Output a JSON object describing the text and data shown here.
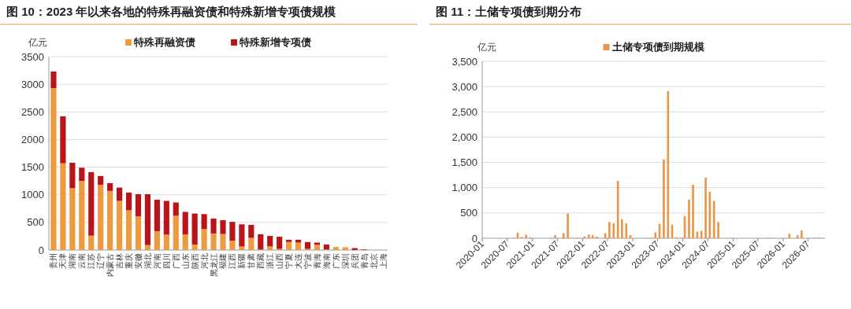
{
  "chart_data": [
    {
      "type": "bar",
      "title": "图 10：2023 年以来各地的特殊再融资债和特殊新增专项债规模",
      "ylabel": "亿元",
      "stacked": true,
      "grid": "y",
      "legend": "top",
      "categories": [
        "贵州",
        "天津",
        "湖南",
        "云南",
        "江苏",
        "辽宁",
        "内蒙古",
        "吉林",
        "重庆",
        "安徽",
        "湖北",
        "河南",
        "四川",
        "广西",
        "山东",
        "陕西",
        "河北",
        "黑龙江",
        "福建",
        "江西",
        "新疆",
        "甘肃",
        "西藏",
        "浙江",
        "山西",
        "宁夏",
        "大连",
        "宁波",
        "青海",
        "海南",
        "广东",
        "深圳",
        "兵团",
        "青岛",
        "北京",
        "上海"
      ],
      "series": [
        {
          "name": "特殊再融资债",
          "color": "#ee9a3e",
          "values": [
            2930,
            1570,
            1120,
            1250,
            260,
            1180,
            1070,
            890,
            720,
            610,
            90,
            340,
            280,
            620,
            280,
            100,
            380,
            300,
            290,
            170,
            65,
            220,
            10,
            65,
            20,
            145,
            135,
            20,
            95,
            10,
            55,
            50,
            0,
            0,
            0,
            0
          ]
        },
        {
          "name": "特殊新增专项债",
          "color": "#b8141a",
          "values": [
            300,
            850,
            460,
            240,
            1150,
            160,
            140,
            240,
            320,
            400,
            920,
            570,
            610,
            240,
            410,
            560,
            270,
            270,
            250,
            340,
            400,
            235,
            275,
            190,
            220,
            40,
            50,
            125,
            40,
            90,
            0,
            0,
            35,
            10,
            0,
            0
          ]
        }
      ],
      "ylim": [
        0,
        3500
      ],
      "yticks": [
        0,
        500,
        1000,
        1500,
        2000,
        2500,
        3000,
        3500
      ]
    },
    {
      "type": "bar",
      "title": "图 11：土储专项债到期分布",
      "ylabel": "亿元",
      "grid": "y",
      "legend": "top",
      "x": [
        "2020-08-15",
        "2020-09-15",
        "2020-10-15",
        "2020-11-15",
        "2020-12-15",
        "2021-05-15",
        "2021-06-15",
        "2021-08-15",
        "2021-09-15",
        "2021-10-15",
        "2021-11-15",
        "2022-01-15",
        "2022-02-15",
        "2022-03-15",
        "2022-04-15",
        "2022-06-15",
        "2022-07-15",
        "2022-08-15",
        "2022-09-15",
        "2022-10-15",
        "2022-11-15",
        "2022-12-15",
        "2023-04-15",
        "2023-05-15",
        "2023-06-15",
        "2023-07-15",
        "2023-08-15",
        "2023-09-15",
        "2023-10-15",
        "2023-11-15",
        "2023-12-15",
        "2024-01-15",
        "2024-02-15",
        "2024-03-15",
        "2024-04-15",
        "2024-05-15",
        "2024-06-15",
        "2024-07-15",
        "2024-08-15",
        "2024-09-15",
        "2025-09-15",
        "2025-10-15",
        "2026-02-15",
        "2026-04-15",
        "2026-05-15",
        "2026-08-15",
        "2026-09-15"
      ],
      "series": [
        {
          "name": "土储专项债到期规模",
          "color": "#e8964a",
          "values": [
            10,
            110,
            25,
            70,
            20,
            10,
            60,
            100,
            490,
            10,
            10,
            35,
            75,
            60,
            30,
            100,
            320,
            295,
            1135,
            375,
            295,
            60,
            10,
            10,
            115,
            285,
            1560,
            2910,
            270,
            20,
            15,
            440,
            765,
            1055,
            130,
            145,
            1200,
            920,
            740,
            320,
            10,
            15,
            90,
            60,
            155,
            10,
            10
          ]
        }
      ],
      "xlim": [
        "2020-01",
        "2026-11"
      ],
      "xticks": [
        "2020-01",
        "2020-07",
        "2021-01",
        "2021-07",
        "2022-01",
        "2022-07",
        "2023-01",
        "2023-07",
        "2024-01",
        "2024-07",
        "2025-01",
        "2025-07",
        "2026-01",
        "2026-07"
      ],
      "ylim": [
        0,
        3500
      ],
      "yticks": [
        {
          "value": 0,
          "label": "0"
        },
        {
          "value": 500,
          "label": "500"
        },
        {
          "value": 1000,
          "label": "1,000"
        },
        {
          "value": 1500,
          "label": "1,500"
        },
        {
          "value": 2000,
          "label": "2,000"
        },
        {
          "value": 2500,
          "label": "2,500"
        },
        {
          "value": 3000,
          "label": "3,000"
        },
        {
          "value": 3500,
          "label": "3,500"
        }
      ]
    }
  ]
}
